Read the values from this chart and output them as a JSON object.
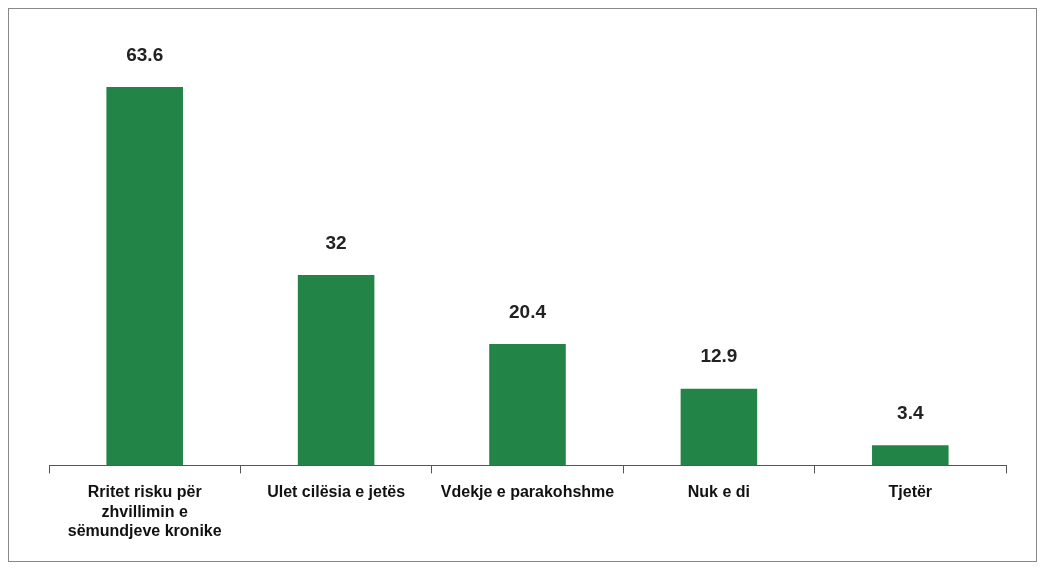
{
  "chart_data": {
    "type": "bar",
    "categories": [
      "Rritet risku për zhvillimin e sëmundjeve kronike",
      "Ulet cilësia e jetës",
      "Vdekje e parakohshme",
      "Nuk e di",
      "Tjetër"
    ],
    "values": [
      63.6,
      32,
      20.4,
      12.9,
      3.4
    ],
    "color": "#238447",
    "data_labels": true,
    "grid": false,
    "legend": false
  }
}
